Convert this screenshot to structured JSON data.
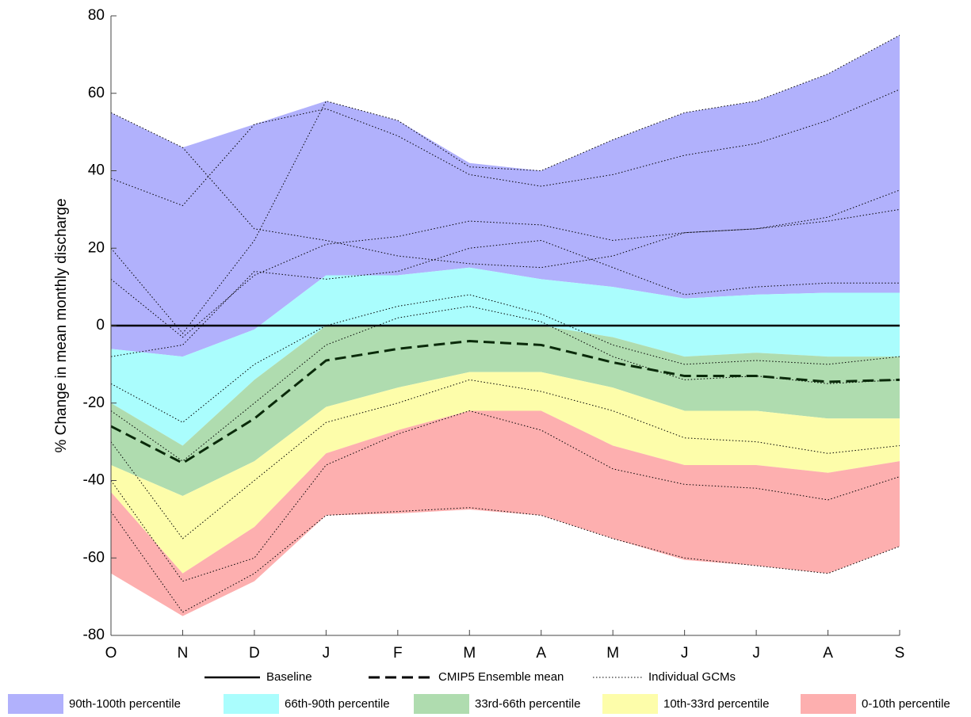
{
  "chart_data": {
    "type": "band-area",
    "y_label": "% Change in mean monthly discharge",
    "categories": [
      "O",
      "N",
      "D",
      "J",
      "F",
      "M",
      "A",
      "M",
      "J",
      "J",
      "A",
      "S"
    ],
    "ylim": [
      -80,
      80
    ],
    "yticks": [
      -80,
      -60,
      -40,
      -20,
      0,
      20,
      40,
      60,
      80
    ],
    "bands": [
      {
        "name": "90th-100th percentile",
        "color": "#b1b1fc",
        "lower": [
          -6,
          -8,
          -1,
          13,
          13,
          15,
          12,
          10,
          7,
          8,
          8.5,
          8.5
        ],
        "upper": [
          55,
          46,
          52,
          58,
          53,
          42,
          40,
          48,
          55,
          58,
          65,
          75
        ]
      },
      {
        "name": "66th-90th percentile",
        "color": "#aafdfd",
        "lower": [
          -20,
          -31,
          -14,
          0,
          0,
          0,
          0,
          -3,
          -8,
          -7,
          -8,
          -8
        ],
        "upper": [
          -6,
          -8,
          -1,
          13,
          13,
          15,
          12,
          10,
          7,
          8,
          8.5,
          8.5
        ]
      },
      {
        "name": "33rd-66th percentile",
        "color": "#afdcaf",
        "lower": [
          -36,
          -44,
          -35,
          -21,
          -16,
          -12,
          -12,
          -16,
          -22,
          -22,
          -24,
          -24
        ],
        "upper": [
          -20,
          -31,
          -14,
          0,
          0,
          0,
          0,
          -3,
          -8,
          -7,
          -8,
          -8
        ]
      },
      {
        "name": "10th-33rd percentile",
        "color": "#fdfdaa",
        "lower": [
          -43,
          -64,
          -52,
          -33,
          -27,
          -22,
          -22,
          -31,
          -36,
          -36,
          -38,
          -35
        ],
        "upper": [
          -36,
          -44,
          -35,
          -21,
          -16,
          -12,
          -12,
          -16,
          -22,
          -22,
          -24,
          -24
        ]
      },
      {
        "name": "0-10th percentile",
        "color": "#fdafaf",
        "lower": [
          -64,
          -75,
          -66,
          -49,
          -48.5,
          -47.5,
          -49,
          -55,
          -60.5,
          -62,
          -64,
          -57
        ],
        "upper": [
          -43,
          -64,
          -52,
          -33,
          -27,
          -22,
          -22,
          -31,
          -36,
          -36,
          -38,
          -35
        ]
      }
    ],
    "baseline": {
      "name": "Baseline",
      "value": 0,
      "color": "#000000"
    },
    "ensemble_mean": {
      "name": "CMIP5 Ensemble mean",
      "color": "#0a2a0a",
      "values": [
        -26,
        -35.5,
        -24,
        -9,
        -6,
        -4,
        -5,
        -9.5,
        -13,
        -13,
        -14.5,
        -14
      ]
    },
    "gcms": {
      "name": "Individual GCMs",
      "color": "#000000",
      "lines": [
        [
          55,
          46,
          25,
          22,
          18,
          16,
          15,
          18,
          24,
          25,
          27,
          30
        ],
        [
          38,
          31,
          52,
          56,
          49,
          39,
          36,
          39,
          44,
          47,
          53,
          61
        ],
        [
          20,
          -2,
          22,
          58,
          53,
          41,
          40,
          48,
          55,
          58,
          65,
          75
        ],
        [
          12,
          -3,
          13,
          21,
          23,
          27,
          26,
          22,
          24,
          25,
          28,
          35
        ],
        [
          -8,
          -5,
          14,
          12,
          14,
          20,
          22,
          15,
          8,
          10,
          11,
          11
        ],
        [
          -15,
          -25,
          -10,
          0,
          5,
          8,
          3,
          -5,
          -10,
          -9,
          -10,
          -8
        ],
        [
          -22,
          -35,
          -20,
          -5,
          2,
          5,
          1,
          -8,
          -14,
          -13,
          -15,
          -14
        ],
        [
          -30,
          -55,
          -40,
          -25,
          -20,
          -14,
          -17,
          -22,
          -29,
          -30,
          -33,
          -31
        ],
        [
          -40,
          -66,
          -60,
          -36,
          -28,
          -22,
          -27,
          -37,
          -41,
          -42,
          -45,
          -39
        ],
        [
          -48,
          -74,
          -64,
          -49,
          -48,
          -47,
          -49,
          -55,
          -60,
          -62,
          -64,
          -57
        ]
      ]
    }
  }
}
